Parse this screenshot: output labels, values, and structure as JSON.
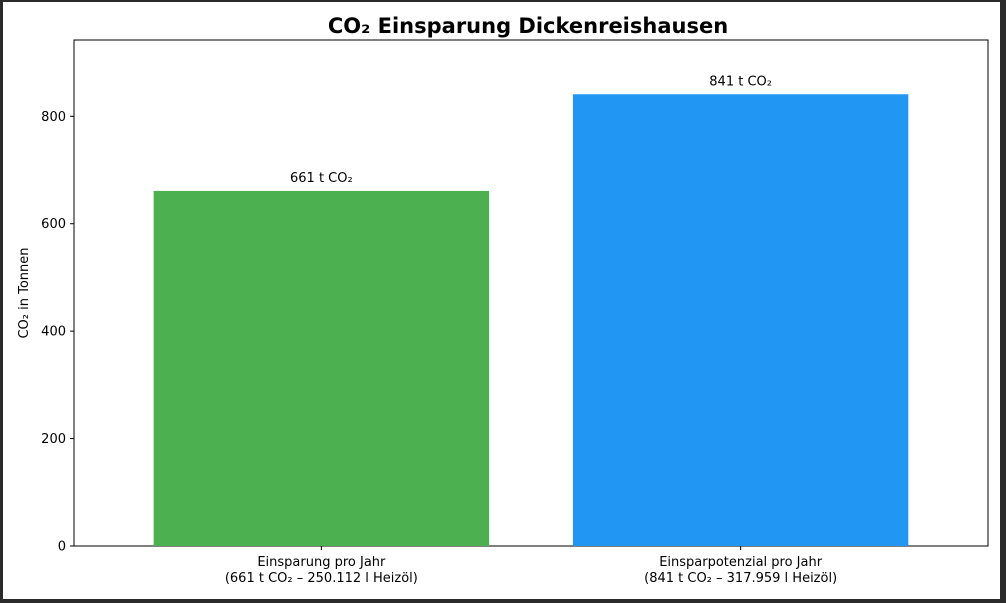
{
  "chart_data": {
    "type": "bar",
    "title": "CO₂ Einsparung Dickenreishausen",
    "xlabel": "",
    "ylabel": "CO₂ in Tonnen",
    "ylim": [
      0,
      942
    ],
    "yticks": [
      0,
      200,
      400,
      600,
      800
    ],
    "grid": false,
    "categories": [
      [
        "Einsparung pro Jahr",
        "(661 t CO₂ – 250.112 l Heizöl)"
      ],
      [
        "Einsparpotenzial pro Jahr",
        "(841 t CO₂ – 317.959 l Heizöl)"
      ]
    ],
    "values": [
      661,
      841
    ],
    "data_labels": [
      "661 t CO₂",
      "841 t CO₂"
    ],
    "colors": [
      "#4caf50",
      "#2196f3"
    ]
  }
}
